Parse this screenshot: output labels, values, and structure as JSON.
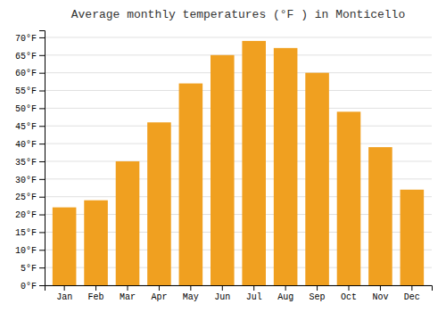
{
  "chart_data": {
    "type": "bar",
    "title": "Average monthly temperatures (°F ) in Monticello",
    "categories": [
      "Jan",
      "Feb",
      "Mar",
      "Apr",
      "May",
      "Jun",
      "Jul",
      "Aug",
      "Sep",
      "Oct",
      "Nov",
      "Dec"
    ],
    "values": [
      22,
      24,
      35,
      46,
      57,
      65,
      69,
      67,
      60,
      49,
      39,
      27
    ],
    "color": "#F0A020",
    "ylim": [
      0,
      72
    ],
    "yticks": [
      {
        "value": 0,
        "label": "0°F"
      },
      {
        "value": 5,
        "label": "5°F"
      },
      {
        "value": 10,
        "label": "10°F"
      },
      {
        "value": 15,
        "label": "15°F"
      },
      {
        "value": 20,
        "label": "20°F"
      },
      {
        "value": 25,
        "label": "25°F"
      },
      {
        "value": 30,
        "label": "30°F"
      },
      {
        "value": 35,
        "label": "35°F"
      },
      {
        "value": 40,
        "label": "40°F"
      },
      {
        "value": 45,
        "label": "45°F"
      },
      {
        "value": 50,
        "label": "50°F"
      },
      {
        "value": 55,
        "label": "55°F"
      },
      {
        "value": 60,
        "label": "60°F"
      },
      {
        "value": 65,
        "label": "65°F"
      },
      {
        "value": 70,
        "label": "70°F"
      }
    ],
    "grid": true
  }
}
